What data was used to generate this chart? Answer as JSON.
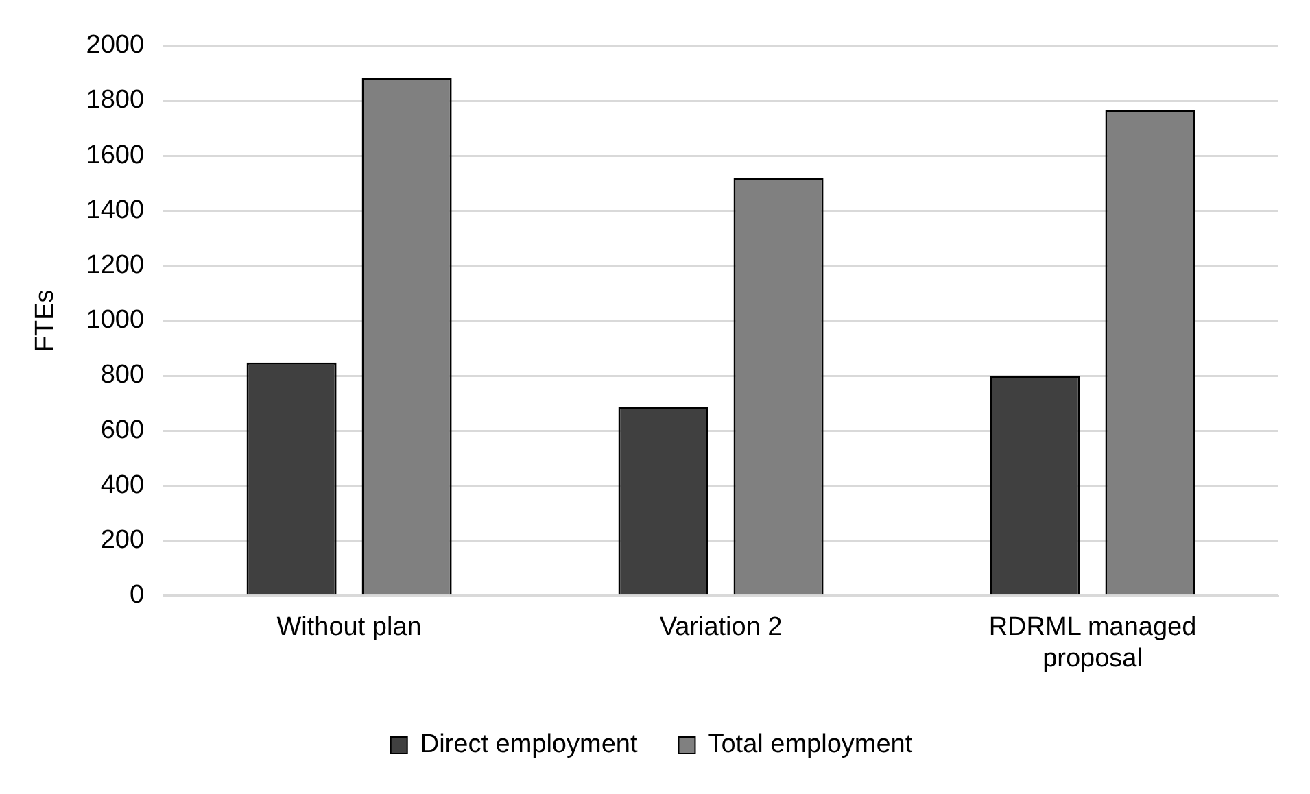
{
  "chart_data": {
    "type": "bar",
    "ylabel": "FTEs",
    "categories": [
      "Without plan",
      "Variation 2",
      "RDRML managed proposal"
    ],
    "series": [
      {
        "name": "Direct employment",
        "color": "#404040",
        "values": [
          848,
          685,
          798
        ]
      },
      {
        "name": "Total employment",
        "color": "#808080",
        "values": [
          1882,
          1518,
          1766
        ]
      }
    ],
    "ylim": [
      0,
      2000
    ],
    "yticks": [
      0,
      200,
      400,
      600,
      800,
      1000,
      1200,
      1400,
      1600,
      1800,
      2000
    ],
    "grid": "y",
    "legend": "bottom"
  }
}
